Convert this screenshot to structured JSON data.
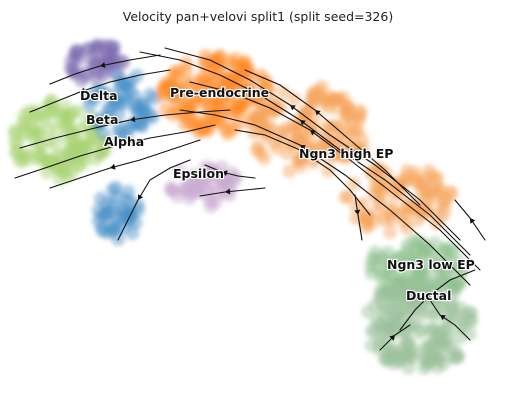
{
  "chart_data": {
    "type": "scatter",
    "title": "Velocity pan+velovi split1 (split seed=326)",
    "xlabel": "",
    "ylabel": "",
    "axes_visible": false,
    "grid": false,
    "legend": "none (labels drawn on data)",
    "embedding": "UMAP with velocity streamlines",
    "clusters": [
      {
        "name": "Delta",
        "color": "#7d6bb0"
      },
      {
        "name": "Beta",
        "color": "#a8d374"
      },
      {
        "name": "Alpha",
        "color": "#4a90c8"
      },
      {
        "name": "Pre-endocrine",
        "color": "#ff8c2a"
      },
      {
        "name": "Epsilon",
        "color": "#c8a6cf"
      },
      {
        "name": "Ngn3 high EP",
        "color": "#f7a35c"
      },
      {
        "name": "Ngn3 low EP",
        "color": "#8fc08f"
      },
      {
        "name": "Ductal",
        "color": "#9cc29c"
      }
    ]
  }
}
